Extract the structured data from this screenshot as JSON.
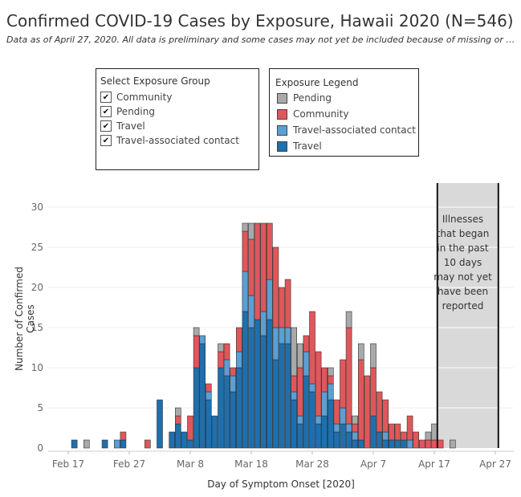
{
  "title": "Confirmed COVID-19 Cases by Exposure, Hawaii 2020 (N=546)",
  "subtitle": "Data as of April 27, 2020. All data is preliminary and some cases may not yet be included because of missing or p..",
  "filter": {
    "title": "Select Exposure Group",
    "items": [
      {
        "label": "Community",
        "checked": true
      },
      {
        "label": "Pending",
        "checked": true
      },
      {
        "label": "Travel",
        "checked": true
      },
      {
        "label": "Travel-associated contact",
        "checked": true
      }
    ]
  },
  "legend": {
    "title": "Exposure Legend",
    "items": [
      {
        "label": "Pending",
        "color": "#a9a9a9"
      },
      {
        "label": "Community",
        "color": "#e0575b"
      },
      {
        "label": "Travel-associated contact",
        "color": "#5b9fd3"
      },
      {
        "label": "Travel",
        "color": "#1f6fad"
      }
    ]
  },
  "shade_note": "Illnesses that began in the past 10 days may not yet have been reported",
  "chart_data": {
    "type": "bar",
    "stacked": true,
    "xlabel": "Day of Symptom Onset [2020]",
    "ylabel": "Number of Confirmed Cases",
    "ylim": [
      0,
      32
    ],
    "yticks": [
      0,
      5,
      10,
      15,
      20,
      25,
      30
    ],
    "x_start": "2020-02-17",
    "xticks": [
      "Feb 17",
      "Feb 27",
      "Mar 8",
      "Mar 18",
      "Mar 28",
      "Apr 7",
      "Apr 17",
      "Apr 27"
    ],
    "shaded_region": [
      "Apr 18",
      "Apr 27"
    ],
    "series_order": [
      "Travel",
      "Travel-associated contact",
      "Community",
      "Pending"
    ],
    "colors": {
      "Travel": "#1f6fad",
      "Travel-associated contact": "#5b9fd3",
      "Community": "#e0575b",
      "Pending": "#a9a9a9"
    },
    "categories": [
      "Feb 18",
      "Feb 20",
      "Feb 23",
      "Feb 25",
      "Feb 26",
      "Mar 1",
      "Mar 3",
      "Mar 5",
      "Mar 6",
      "Mar 7",
      "Mar 8",
      "Mar 9",
      "Mar 10",
      "Mar 11",
      "Mar 12",
      "Mar 13",
      "Mar 14",
      "Mar 15",
      "Mar 16",
      "Mar 17",
      "Mar 18",
      "Mar 19",
      "Mar 20",
      "Mar 21",
      "Mar 22",
      "Mar 23",
      "Mar 24",
      "Mar 25",
      "Mar 26",
      "Mar 27",
      "Mar 28",
      "Mar 29",
      "Mar 30",
      "Mar 31",
      "Apr 1",
      "Apr 2",
      "Apr 3",
      "Apr 4",
      "Apr 5",
      "Apr 6",
      "Apr 7",
      "Apr 8",
      "Apr 9",
      "Apr 10",
      "Apr 11",
      "Apr 12",
      "Apr 13",
      "Apr 14",
      "Apr 15",
      "Apr 16",
      "Apr 17",
      "Apr 18",
      "Apr 19",
      "Apr 20",
      "Apr 21"
    ],
    "series": [
      {
        "name": "Travel",
        "values": [
          1,
          0,
          1,
          0,
          1,
          0,
          6,
          2,
          3,
          2,
          1,
          10,
          13,
          6,
          4,
          10,
          9,
          7,
          10,
          17,
          15,
          16,
          14,
          16,
          11,
          13,
          13,
          6,
          3,
          9,
          7,
          3,
          4,
          6,
          2,
          3,
          2,
          1,
          1,
          0,
          4,
          2,
          1,
          1,
          1,
          1,
          0,
          0,
          0,
          0,
          0,
          0,
          0,
          0,
          0
        ]
      },
      {
        "name": "Travel-associated contact",
        "values": [
          0,
          0,
          0,
          1,
          0,
          0,
          0,
          0,
          0,
          0,
          0,
          0,
          1,
          1,
          0,
          0,
          2,
          2,
          2,
          5,
          4,
          0,
          3,
          5,
          4,
          2,
          2,
          1,
          1,
          3,
          1,
          1,
          3,
          2,
          1,
          2,
          1,
          1,
          0,
          0,
          0,
          0,
          1,
          0,
          0,
          0,
          1,
          0,
          0,
          0,
          0,
          0,
          0,
          0,
          0
        ]
      },
      {
        "name": "Community",
        "values": [
          0,
          0,
          0,
          0,
          1,
          1,
          0,
          0,
          1,
          0,
          3,
          4,
          0,
          1,
          0,
          2,
          2,
          1,
          3,
          5,
          7,
          12,
          11,
          7,
          10,
          5,
          6,
          2,
          6,
          2,
          9,
          8,
          3,
          1,
          3,
          6,
          12,
          1,
          10,
          9,
          6,
          5,
          4,
          2,
          2,
          1,
          3,
          2,
          1,
          1,
          1,
          1,
          0,
          0,
          0
        ]
      },
      {
        "name": "Pending",
        "values": [
          0,
          1,
          0,
          0,
          0,
          0,
          0,
          0,
          1,
          0,
          0,
          1,
          0,
          0,
          0,
          1,
          0,
          0,
          0,
          1,
          2,
          0,
          0,
          0,
          0,
          0,
          0,
          6,
          3,
          0,
          0,
          0,
          0,
          1,
          0,
          0,
          2,
          1,
          2,
          0,
          3,
          0,
          0,
          0,
          0,
          0,
          0,
          0,
          0,
          1,
          2,
          0,
          0,
          1,
          0
        ]
      }
    ]
  }
}
